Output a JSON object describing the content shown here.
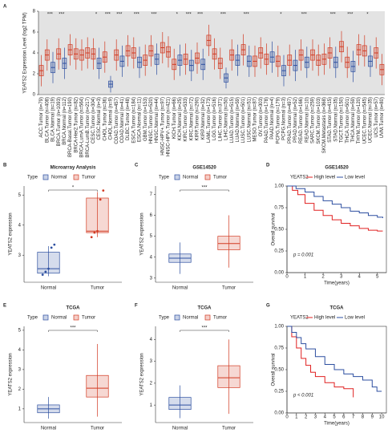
{
  "chart_data": [
    {
      "type": "box",
      "letter": "A",
      "ylabel": "YEATS2 Expression Level (log2 TPM)",
      "bg": "#e3e3e3",
      "rotate_labels": true,
      "categories": [
        "ACC.Tumor (n=79)",
        "BLCA.Tumor (n=408)",
        "BLCA.Normal (n=19)",
        "BRCA.Tumor (n=1093)",
        "BRCA.Normal (n=112)",
        "BRCA-Basal.Tumor (n=190)",
        "BRCA-Her2.Tumor (n=82)",
        "BRCA-LumA.Tumor (n=564)",
        "BRCA-LumB.Tumor (n=217)",
        "CESC.Tumor (n=304)",
        "CESC.Normal (n=3)",
        "CHOL.Tumor (n=36)",
        "CHOL.Normal (n=9)",
        "COAD.Tumor (n=457)",
        "COAD.Normal (n=41)",
        "DLBC.Tumor (n=48)",
        "ESCA.Tumor (n=184)",
        "ESCA.Normal (n=11)",
        "GBM.Tumor (n=153)",
        "HNSC.Tumor (n=520)",
        "HNSC.Normal (n=44)",
        "HNSC-HPV+.Tumor (n=97)",
        "HNSC-HPV-.Tumor (n=421)",
        "KICH.Tumor (n=66)",
        "KICH.Normal (n=25)",
        "KIRC.Tumor (n=533)",
        "KIRC.Normal (n=72)",
        "KIRP.Tumor (n=290)",
        "KIRP.Normal (n=32)",
        "LAML.Tumor (n=173)",
        "LGG.Tumor (n=516)",
        "LIHC.Tumor (n=371)",
        "LIHC.Normal (n=50)",
        "LUAD.Tumor (n=515)",
        "LUAD.Normal (n=59)",
        "LUSC.Tumor (n=501)",
        "LUSC.Normal (n=51)",
        "MESO.Tumor (n=87)",
        "OV.Tumor (n=303)",
        "PAAD.Tumor (n=178)",
        "PAAD.Normal (n=4)",
        "PCPG.Tumor (n=179)",
        "PCPG.Normal (n=3)",
        "PRAD.Tumor (n=497)",
        "PRAD.Normal (n=52)",
        "READ.Tumor (n=166)",
        "READ.Normal (n=10)",
        "SARC.Tumor (n=259)",
        "SKCM.Tumor (n=103)",
        "SKCM.Metastasis (n=368)",
        "STAD.Tumor (n=415)",
        "STAD.Normal (n=35)",
        "TGCT.Tumor (n=150)",
        "THCA.Tumor (n=501)",
        "THCA.Normal (n=59)",
        "THYM.Tumor (n=120)",
        "UCEC.Tumor (n=545)",
        "UCEC.Normal (n=35)",
        "UCS.Tumor (n=57)",
        "UVM.Tumor (n=80)"
      ],
      "boxes": [
        [
          0.8,
          1.8,
          2.3,
          2.8,
          3.8
        ],
        [
          2.3,
          3.3,
          3.8,
          4.3,
          5.3
        ],
        [
          1.1,
          2.1,
          2.6,
          3.1,
          4.1
        ],
        [
          2.4,
          3.4,
          3.9,
          4.4,
          5.4
        ],
        [
          1.5,
          2.5,
          3.0,
          3.5,
          4.5
        ],
        [
          2.8,
          3.8,
          4.3,
          4.8,
          5.8
        ],
        [
          2.4,
          3.4,
          3.9,
          4.4,
          5.4
        ],
        [
          2.3,
          3.3,
          3.8,
          4.3,
          5.3
        ],
        [
          2.5,
          3.5,
          4.0,
          4.5,
          5.5
        ],
        [
          2.4,
          3.4,
          3.9,
          4.4,
          5.4
        ],
        [
          1.5,
          2.5,
          3.0,
          3.5,
          4.5
        ],
        [
          2.1,
          3.1,
          3.6,
          4.1,
          5.1
        ],
        [
          0.2,
          0.7,
          1.0,
          1.3,
          1.8
        ],
        [
          2.3,
          3.3,
          3.8,
          4.3,
          5.3
        ],
        [
          1.7,
          2.7,
          3.2,
          3.7,
          4.7
        ],
        [
          2.7,
          3.7,
          4.2,
          4.7,
          5.7
        ],
        [
          2.5,
          3.5,
          4.0,
          4.5,
          5.5
        ],
        [
          1.6,
          2.6,
          3.1,
          3.6,
          4.6
        ],
        [
          1.8,
          2.8,
          3.3,
          3.8,
          4.8
        ],
        [
          2.7,
          3.7,
          4.2,
          4.7,
          5.7
        ],
        [
          1.9,
          2.9,
          3.4,
          3.9,
          4.9
        ],
        [
          3.0,
          4.0,
          4.5,
          5.0,
          6.0
        ],
        [
          2.6,
          3.6,
          4.1,
          4.6,
          5.6
        ],
        [
          1.4,
          2.4,
          2.9,
          3.4,
          4.4
        ],
        [
          1.8,
          2.8,
          3.3,
          3.8,
          4.8
        ],
        [
          1.9,
          2.9,
          3.4,
          3.9,
          4.9
        ],
        [
          1.3,
          2.3,
          2.8,
          3.3,
          4.3
        ],
        [
          2.0,
          3.0,
          3.5,
          4.0,
          5.0
        ],
        [
          1.4,
          2.4,
          2.9,
          3.4,
          4.4
        ],
        [
          3.7,
          4.7,
          5.2,
          5.7,
          6.7
        ],
        [
          2.4,
          3.4,
          3.9,
          4.4,
          5.4
        ],
        [
          1.5,
          2.5,
          3.0,
          3.5,
          4.5
        ],
        [
          0.6,
          1.2,
          1.6,
          2.0,
          2.6
        ],
        [
          2.3,
          3.3,
          3.8,
          4.3,
          5.3
        ],
        [
          1.8,
          2.8,
          3.3,
          3.8,
          4.8
        ],
        [
          2.8,
          3.8,
          4.3,
          4.8,
          5.8
        ],
        [
          1.7,
          2.7,
          3.2,
          3.7,
          4.7
        ],
        [
          1.7,
          2.7,
          3.2,
          3.7,
          4.7
        ],
        [
          2.5,
          3.5,
          4.0,
          4.5,
          5.5
        ],
        [
          1.9,
          2.9,
          3.4,
          3.9,
          4.9
        ],
        [
          2.1,
          3.1,
          3.6,
          4.1,
          5.1
        ],
        [
          1.7,
          2.7,
          3.2,
          3.7,
          4.7
        ],
        [
          0.8,
          1.8,
          2.3,
          2.8,
          3.8
        ],
        [
          1.8,
          2.8,
          3.3,
          3.8,
          4.8
        ],
        [
          1.3,
          2.3,
          2.8,
          3.3,
          4.3
        ],
        [
          2.3,
          3.3,
          3.8,
          4.3,
          5.3
        ],
        [
          1.6,
          2.6,
          3.1,
          3.6,
          4.6
        ],
        [
          2.3,
          3.3,
          3.8,
          4.3,
          5.3
        ],
        [
          1.8,
          2.8,
          3.3,
          3.8,
          4.8
        ],
        [
          1.9,
          2.9,
          3.4,
          3.9,
          4.9
        ],
        [
          2.5,
          3.5,
          4.0,
          4.5,
          5.5
        ],
        [
          1.6,
          2.6,
          3.1,
          3.6,
          4.6
        ],
        [
          3.1,
          4.1,
          4.6,
          5.1,
          6.1
        ],
        [
          1.6,
          2.6,
          3.1,
          3.6,
          4.6
        ],
        [
          1.2,
          2.2,
          2.7,
          3.2,
          4.2
        ],
        [
          2.8,
          3.8,
          4.3,
          4.8,
          5.8
        ],
        [
          2.7,
          3.7,
          4.2,
          4.7,
          5.7
        ],
        [
          1.7,
          2.7,
          3.2,
          3.7,
          4.7
        ],
        [
          2.5,
          3.5,
          4.0,
          4.5,
          5.5
        ],
        [
          0.9,
          1.9,
          2.4,
          2.9,
          3.9
        ]
      ],
      "colors": [
        "#d23a22",
        "#d23a22",
        "#2d4fa0",
        "#d23a22",
        "#2d4fa0",
        "#d23a22",
        "#d23a22",
        "#d23a22",
        "#d23a22",
        "#d23a22",
        "#2d4fa0",
        "#d23a22",
        "#2d4fa0",
        "#d23a22",
        "#2d4fa0",
        "#d23a22",
        "#d23a22",
        "#2d4fa0",
        "#d23a22",
        "#d23a22",
        "#2d4fa0",
        "#d23a22",
        "#d23a22",
        "#d23a22",
        "#2d4fa0",
        "#d23a22",
        "#2d4fa0",
        "#d23a22",
        "#2d4fa0",
        "#d23a22",
        "#d23a22",
        "#d23a22",
        "#2d4fa0",
        "#d23a22",
        "#2d4fa0",
        "#d23a22",
        "#2d4fa0",
        "#d23a22",
        "#d23a22",
        "#d23a22",
        "#2d4fa0",
        "#d23a22",
        "#2d4fa0",
        "#d23a22",
        "#2d4fa0",
        "#d23a22",
        "#2d4fa0",
        "#d23a22",
        "#d23a22",
        "#d23a22",
        "#d23a22",
        "#2d4fa0",
        "#d23a22",
        "#d23a22",
        "#2d4fa0",
        "#d23a22",
        "#d23a22",
        "#2d4fa0",
        "#d23a22",
        "#d23a22"
      ],
      "significance": [
        null,
        "***",
        null,
        "***",
        null,
        null,
        null,
        null,
        null,
        "*",
        null,
        "***",
        null,
        "***",
        null,
        null,
        "***",
        null,
        null,
        "***",
        null,
        null,
        null,
        "*",
        null,
        "***",
        null,
        "***",
        null,
        null,
        null,
        "***",
        null,
        null,
        null,
        "***",
        null,
        null,
        null,
        null,
        null,
        "*",
        null,
        null,
        null,
        "***",
        null,
        null,
        null,
        null,
        "***",
        null,
        null,
        "***",
        null,
        null,
        "*",
        null,
        null,
        null
      ],
      "ylim": [
        0,
        8
      ],
      "yticks": [
        0,
        2,
        4,
        6,
        8
      ]
    },
    {
      "type": "box",
      "letter": "B",
      "title": "Microarray Analysis",
      "ylabel": "YEATS2 expression",
      "legend_title": "Type",
      "categories": [
        "Normal",
        "Tumor"
      ],
      "colors": [
        "#2d4fa0",
        "#d23a22"
      ],
      "boxes": [
        [
          2.3,
          2.4,
          2.55,
          3.1,
          3.3
        ],
        [
          3.6,
          3.75,
          3.8,
          4.9,
          5.1
        ]
      ],
      "points": [
        [
          2.35,
          2.45,
          2.55,
          3.25,
          3.35
        ],
        [
          3.6,
          3.75,
          3.8,
          4.85,
          5.15
        ]
      ],
      "significance": "*",
      "ylim": [
        2.1,
        5.3
      ],
      "yticks": [
        3,
        4,
        5
      ]
    },
    {
      "type": "box",
      "letter": "C",
      "title": "GSE14520",
      "ylabel": "YEATS2 expression",
      "legend_title": "Type",
      "categories": [
        "Normal",
        "Tumor"
      ],
      "colors": [
        "#2d4fa0",
        "#d23a22"
      ],
      "boxes": [
        [
          3.2,
          3.75,
          3.95,
          4.15,
          4.7
        ],
        [
          3.5,
          4.35,
          4.65,
          5.0,
          6.0
        ]
      ],
      "significance": "***",
      "ylim": [
        2.8,
        7.4
      ],
      "yticks": [
        3,
        4,
        5,
        6,
        7
      ]
    },
    {
      "type": "step",
      "letter": "D",
      "title": "GSE14520",
      "ylabel": "Overall survival",
      "xlabel": "Time(years)",
      "legend_title": "YEATS2",
      "annotation": "p = 0.001",
      "series": [
        {
          "name": "High level",
          "color": "#e02020",
          "x": [
            0,
            0.3,
            0.6,
            1,
            1.5,
            2,
            2.5,
            3,
            3.5,
            4,
            4.5,
            5,
            5.3
          ],
          "y": [
            1,
            0.95,
            0.9,
            0.8,
            0.72,
            0.66,
            0.61,
            0.57,
            0.54,
            0.51,
            0.49,
            0.48,
            0.48
          ]
        },
        {
          "name": "Low level",
          "color": "#2d4fa0",
          "x": [
            0,
            0.5,
            1,
            1.5,
            2,
            2.5,
            3,
            3.5,
            4,
            4.5,
            5,
            5.3
          ],
          "y": [
            1,
            0.97,
            0.93,
            0.88,
            0.83,
            0.79,
            0.75,
            0.71,
            0.69,
            0.66,
            0.64,
            0.63
          ]
        }
      ],
      "xlim": [
        0,
        5.5
      ],
      "xticks": [
        0,
        1,
        2,
        3,
        4,
        5
      ],
      "ylim": [
        0,
        1
      ],
      "yticks": [
        {
          "value": 0,
          "label": "0.00"
        },
        {
          "value": 0.25,
          "label": "0.25"
        },
        {
          "value": 0.5,
          "label": "0.50"
        },
        {
          "value": 0.75,
          "label": "0.75"
        },
        {
          "value": 1,
          "label": "1.00"
        }
      ]
    },
    {
      "type": "box",
      "letter": "E",
      "title": "TCGA",
      "ylabel": "YEATS2 expression",
      "legend_title": "Type",
      "categories": [
        "Normal",
        "Tumor"
      ],
      "colors": [
        "#2d4fa0",
        "#d23a22"
      ],
      "boxes": [
        [
          0.5,
          0.8,
          1.0,
          1.2,
          1.6
        ],
        [
          0.6,
          1.6,
          2.05,
          2.7,
          4.3
        ]
      ],
      "significance": "***",
      "ylim": [
        0.3,
        5.2
      ],
      "yticks": [
        1,
        2,
        3,
        4,
        5
      ]
    },
    {
      "type": "box",
      "letter": "F",
      "title": "TCGA",
      "ylabel": "YEATS2 expression",
      "legend_title": "Type",
      "categories": [
        "Normal",
        "Tumor"
      ],
      "colors": [
        "#2d4fa0",
        "#d23a22"
      ],
      "boxes": [
        [
          0.4,
          0.8,
          1.0,
          1.35,
          1.9
        ],
        [
          0.6,
          1.8,
          2.25,
          2.8,
          4.0
        ]
      ],
      "significance": "***",
      "ylim": [
        0.2,
        4.6
      ],
      "yticks": [
        1,
        2,
        3,
        4
      ]
    },
    {
      "type": "step",
      "letter": "G",
      "title": "TCGA",
      "ylabel": "Overall survival",
      "xlabel": "Time(years)",
      "legend_title": "YEATS2",
      "annotation": "p < 0.001",
      "series": [
        {
          "name": "High level",
          "color": "#e02020",
          "x": [
            0,
            0.5,
            1,
            1.5,
            2,
            2.5,
            3,
            4,
            5,
            6,
            7
          ],
          "y": [
            1,
            0.88,
            0.75,
            0.63,
            0.55,
            0.47,
            0.42,
            0.35,
            0.3,
            0.28,
            0.18
          ]
        },
        {
          "name": "Low level",
          "color": "#2d4fa0",
          "x": [
            0,
            0.5,
            1,
            1.5,
            2,
            3,
            4,
            5,
            6,
            7,
            8,
            9,
            9.5,
            10
          ],
          "y": [
            1,
            0.93,
            0.87,
            0.8,
            0.74,
            0.65,
            0.56,
            0.5,
            0.45,
            0.42,
            0.38,
            0.3,
            0.25,
            0.25
          ]
        }
      ],
      "xlim": [
        0,
        10.5
      ],
      "xticks": [
        0,
        1,
        2,
        3,
        4,
        5,
        6,
        7,
        8,
        9,
        10
      ],
      "ylim": [
        0,
        1
      ],
      "yticks": [
        {
          "value": 0,
          "label": "0.00"
        },
        {
          "value": 0.25,
          "label": "0.25"
        },
        {
          "value": 0.5,
          "label": "0.50"
        },
        {
          "value": 0.75,
          "label": "0.75"
        },
        {
          "value": 1,
          "label": "1.00"
        }
      ]
    }
  ]
}
